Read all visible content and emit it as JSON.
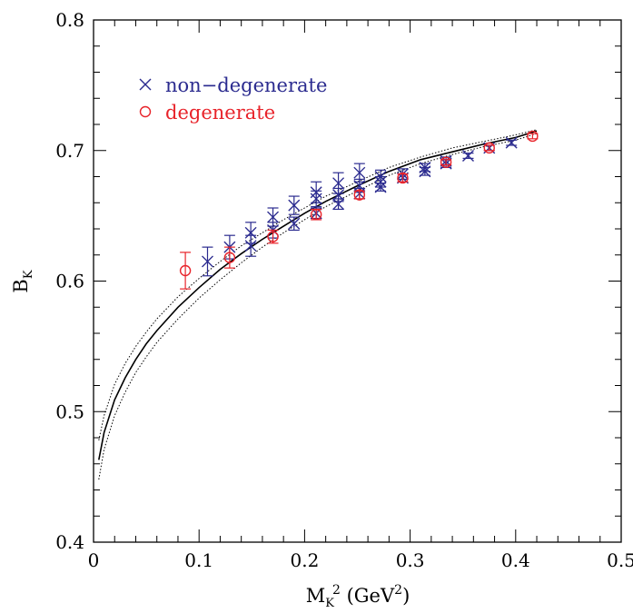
{
  "chart_data": {
    "type": "scatter",
    "title": "",
    "xlabel": "M_K^2 (GeV^2)",
    "ylabel": "B_K",
    "xlabel_parts": {
      "main": "M",
      "sub": "K",
      "sup": "2",
      "paren_open": " (GeV",
      "paren_sup": "2",
      "paren_close": ")"
    },
    "ylabel_parts": {
      "main": "B",
      "sub": "K"
    },
    "xlim": [
      0,
      0.5
    ],
    "ylim": [
      0.4,
      0.8
    ],
    "x_ticks": [
      0,
      0.1,
      0.2,
      0.3,
      0.4,
      0.5
    ],
    "x_tick_labels": [
      "0",
      "0.1",
      "0.2",
      "0.3",
      "0.4",
      "0.5"
    ],
    "y_ticks": [
      0.4,
      0.5,
      0.6,
      0.7,
      0.8
    ],
    "y_tick_labels": [
      "0.4",
      "0.5",
      "0.6",
      "0.7",
      "0.8"
    ],
    "grid": false,
    "legend_position": "top-left",
    "series": [
      {
        "name": "non−degenerate",
        "marker": "cross",
        "color": "#2b2b8f",
        "points": [
          {
            "x": 0.108,
            "y": 0.615,
            "err": 0.011
          },
          {
            "x": 0.129,
            "y": 0.626,
            "err": 0.009
          },
          {
            "x": 0.149,
            "y": 0.627,
            "err": 0.008
          },
          {
            "x": 0.149,
            "y": 0.637,
            "err": 0.008
          },
          {
            "x": 0.17,
            "y": 0.639,
            "err": 0.006
          },
          {
            "x": 0.17,
            "y": 0.649,
            "err": 0.007
          },
          {
            "x": 0.19,
            "y": 0.644,
            "err": 0.005
          },
          {
            "x": 0.19,
            "y": 0.658,
            "err": 0.007
          },
          {
            "x": 0.211,
            "y": 0.652,
            "err": 0.004
          },
          {
            "x": 0.211,
            "y": 0.663,
            "err": 0.006
          },
          {
            "x": 0.211,
            "y": 0.668,
            "err": 0.008
          },
          {
            "x": 0.232,
            "y": 0.659,
            "err": 0.004
          },
          {
            "x": 0.232,
            "y": 0.666,
            "err": 0.005
          },
          {
            "x": 0.232,
            "y": 0.675,
            "err": 0.008
          },
          {
            "x": 0.252,
            "y": 0.667,
            "err": 0.004
          },
          {
            "x": 0.252,
            "y": 0.673,
            "err": 0.005
          },
          {
            "x": 0.252,
            "y": 0.683,
            "err": 0.007
          },
          {
            "x": 0.272,
            "y": 0.672,
            "err": 0.003
          },
          {
            "x": 0.272,
            "y": 0.676,
            "err": 0.004
          },
          {
            "x": 0.272,
            "y": 0.68,
            "err": 0.005
          },
          {
            "x": 0.293,
            "y": 0.679,
            "err": 0.003
          },
          {
            "x": 0.293,
            "y": 0.682,
            "err": 0.004
          },
          {
            "x": 0.314,
            "y": 0.684,
            "err": 0.003
          },
          {
            "x": 0.314,
            "y": 0.687,
            "err": 0.003
          },
          {
            "x": 0.334,
            "y": 0.69,
            "err": 0.003
          },
          {
            "x": 0.334,
            "y": 0.692,
            "err": 0.003
          },
          {
            "x": 0.355,
            "y": 0.696,
            "err": 0.002
          },
          {
            "x": 0.375,
            "y": 0.702,
            "err": 0.002
          },
          {
            "x": 0.396,
            "y": 0.706,
            "err": 0.002
          }
        ]
      },
      {
        "name": "degenerate",
        "marker": "circle",
        "color": "#e8232a",
        "points": [
          {
            "x": 0.087,
            "y": 0.608,
            "err": 0.014
          },
          {
            "x": 0.129,
            "y": 0.618,
            "err": 0.008
          },
          {
            "x": 0.17,
            "y": 0.634,
            "err": 0.005
          },
          {
            "x": 0.211,
            "y": 0.651,
            "err": 0.004
          },
          {
            "x": 0.252,
            "y": 0.666,
            "err": 0.003
          },
          {
            "x": 0.293,
            "y": 0.679,
            "err": 0.003
          },
          {
            "x": 0.334,
            "y": 0.691,
            "err": 0.002
          },
          {
            "x": 0.375,
            "y": 0.702,
            "err": 0.002
          },
          {
            "x": 0.416,
            "y": 0.711,
            "err": 0.002
          }
        ]
      }
    ],
    "fit_curves": [
      {
        "style": "solid",
        "points": [
          [
            0.005,
            0.463
          ],
          [
            0.01,
            0.484
          ],
          [
            0.02,
            0.509
          ],
          [
            0.03,
            0.526
          ],
          [
            0.04,
            0.54
          ],
          [
            0.05,
            0.552
          ],
          [
            0.06,
            0.562
          ],
          [
            0.08,
            0.58
          ],
          [
            0.1,
            0.595
          ],
          [
            0.12,
            0.609
          ],
          [
            0.14,
            0.621
          ],
          [
            0.16,
            0.632
          ],
          [
            0.18,
            0.642
          ],
          [
            0.2,
            0.652
          ],
          [
            0.22,
            0.661
          ],
          [
            0.25,
            0.673
          ],
          [
            0.28,
            0.684
          ],
          [
            0.31,
            0.693
          ],
          [
            0.34,
            0.699
          ],
          [
            0.37,
            0.705
          ],
          [
            0.4,
            0.71
          ],
          [
            0.42,
            0.715
          ]
        ]
      },
      {
        "style": "dotted",
        "points": [
          [
            0.005,
            0.478
          ],
          [
            0.01,
            0.497
          ],
          [
            0.02,
            0.521
          ],
          [
            0.03,
            0.537
          ],
          [
            0.04,
            0.55
          ],
          [
            0.05,
            0.561
          ],
          [
            0.06,
            0.571
          ],
          [
            0.08,
            0.588
          ],
          [
            0.1,
            0.602
          ],
          [
            0.12,
            0.615
          ],
          [
            0.14,
            0.627
          ],
          [
            0.16,
            0.637
          ],
          [
            0.18,
            0.647
          ],
          [
            0.2,
            0.656
          ],
          [
            0.22,
            0.665
          ],
          [
            0.25,
            0.676
          ],
          [
            0.28,
            0.687
          ],
          [
            0.31,
            0.695
          ],
          [
            0.34,
            0.702
          ],
          [
            0.37,
            0.707
          ],
          [
            0.4,
            0.712
          ],
          [
            0.42,
            0.716
          ]
        ]
      },
      {
        "style": "dotted",
        "points": [
          [
            0.005,
            0.448
          ],
          [
            0.01,
            0.471
          ],
          [
            0.02,
            0.497
          ],
          [
            0.03,
            0.515
          ],
          [
            0.04,
            0.53
          ],
          [
            0.05,
            0.542
          ],
          [
            0.06,
            0.553
          ],
          [
            0.08,
            0.571
          ],
          [
            0.1,
            0.587
          ],
          [
            0.12,
            0.601
          ],
          [
            0.14,
            0.614
          ],
          [
            0.16,
            0.626
          ],
          [
            0.18,
            0.637
          ],
          [
            0.2,
            0.647
          ],
          [
            0.22,
            0.657
          ],
          [
            0.25,
            0.669
          ],
          [
            0.28,
            0.681
          ],
          [
            0.31,
            0.69
          ],
          [
            0.34,
            0.697
          ],
          [
            0.37,
            0.703
          ],
          [
            0.4,
            0.708
          ],
          [
            0.42,
            0.713
          ]
        ]
      }
    ]
  }
}
